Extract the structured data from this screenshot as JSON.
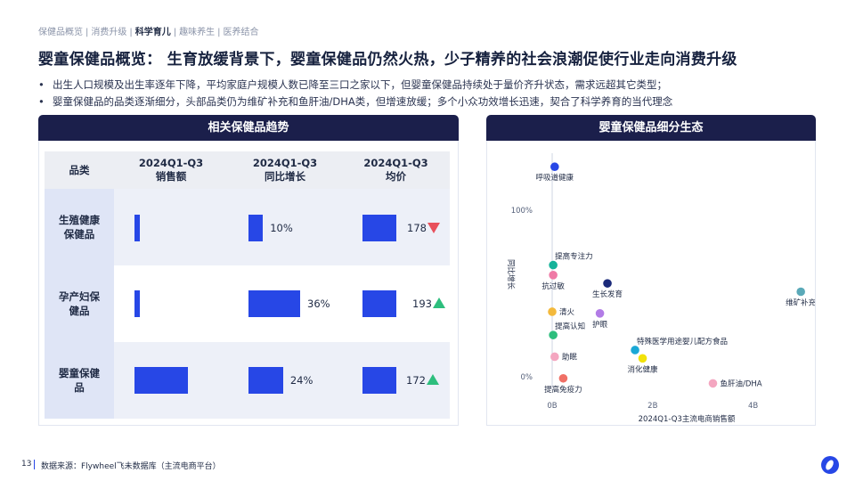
{
  "breadcrumb": {
    "items": [
      "保健品概览",
      "消费升级",
      "科学育儿",
      "趣味养生",
      "医养结合"
    ],
    "active_index": 2
  },
  "title": "婴童保健品概览： 生育放缓背景下，婴童保健品仍然火热，少子精养的社会浪潮促使行业走向消费升级",
  "bullets": [
    "出生人口规模及出生率逐年下降，平均家庭户规模人数已降至三口之家以下，但婴童保健品持续处于量价齐升状态，需求远超其它类型；",
    "婴童保健品的品类逐渐细分，头部品类仍为维矿补充和鱼肝油/DHA类，但增速放缓；多个小众功效增长迅速，契合了科学养育的当代理念"
  ],
  "left_panel": {
    "title": "相关保健品趋势",
    "columns": [
      "品类",
      "2024Q1-Q3\n销售额",
      "2024Q1-Q3\n同比增长",
      "2024Q1-Q3\n均价"
    ],
    "rows": [
      {
        "category": "生殖健康保健品",
        "sales_share": 0.1,
        "growth": "10%",
        "growth_share": 0.28,
        "price": "178",
        "trend": "down"
      },
      {
        "category": "孕产妇保健品",
        "sales_share": 0.1,
        "growth": "36%",
        "growth_share": 1.0,
        "price": "193",
        "trend": "up"
      },
      {
        "category": "婴童保健品",
        "sales_share": 1.0,
        "growth": "24%",
        "growth_share": 0.67,
        "price": "172",
        "trend": "up"
      }
    ],
    "price_bar_share": 1.0,
    "colors": {
      "bar": "#2747e6",
      "up": "#2dbe7d",
      "down": "#e8505b"
    }
  },
  "right_panel": {
    "title": "婴童保健品细分生态"
  },
  "chart_data": {
    "type": "scatter",
    "title": "",
    "xlabel": "2024Q1-Q3主流电商销售额",
    "ylabel": "同比增长",
    "x_ticks": [
      "0B",
      "2B",
      "4B"
    ],
    "x_tick_values": [
      0,
      2,
      4
    ],
    "y_ticks": [
      "0%",
      "100%"
    ],
    "y_tick_values": [
      0,
      1.0
    ],
    "xlim": [
      0,
      5.0
    ],
    "ylim": [
      -0.07,
      1.32
    ],
    "points": [
      {
        "name": "呼吸道健康",
        "x": 0.05,
        "y": 1.26,
        "color": "#2747e6",
        "label_pos": "below"
      },
      {
        "name": "提高专注力",
        "x": 0.02,
        "y": 0.67,
        "color": "#16b39a",
        "label_pos": "above-right"
      },
      {
        "name": "抗过敏",
        "x": 0.02,
        "y": 0.61,
        "color": "#ef7aa6",
        "label_pos": "below"
      },
      {
        "name": "生长发育",
        "x": 1.1,
        "y": 0.56,
        "color": "#1b2a7a",
        "label_pos": "below"
      },
      {
        "name": "维矿补充",
        "x": 4.95,
        "y": 0.51,
        "color": "#5aa9b8",
        "label_pos": "below"
      },
      {
        "name": "清火",
        "x": 0.0,
        "y": 0.39,
        "color": "#f3b93c",
        "label_pos": "right"
      },
      {
        "name": "护眼",
        "x": 0.95,
        "y": 0.38,
        "color": "#b27ce6",
        "label_pos": "below"
      },
      {
        "name": "提高认知",
        "x": 0.02,
        "y": 0.25,
        "color": "#2dbe7d",
        "label_pos": "above-right"
      },
      {
        "name": "特殊医学用途婴儿配方食品",
        "x": 1.65,
        "y": 0.16,
        "color": "#1aa8d6",
        "label_pos": "above-right"
      },
      {
        "name": "助眠",
        "x": 0.05,
        "y": 0.12,
        "color": "#f4a6c0",
        "label_pos": "right"
      },
      {
        "name": "消化健康",
        "x": 1.8,
        "y": 0.11,
        "color": "#f2e20a",
        "label_pos": "below"
      },
      {
        "name": "提高免疫力",
        "x": 0.22,
        "y": -0.01,
        "color": "#f07066",
        "label_pos": "below"
      },
      {
        "name": "鱼肝油/DHA",
        "x": 3.2,
        "y": -0.04,
        "color": "#f4a6c0",
        "label_pos": "right"
      }
    ]
  },
  "footer": {
    "page_number": "13",
    "source": "数据来源：Flywheel飞未数据库（主流电商平台）"
  }
}
